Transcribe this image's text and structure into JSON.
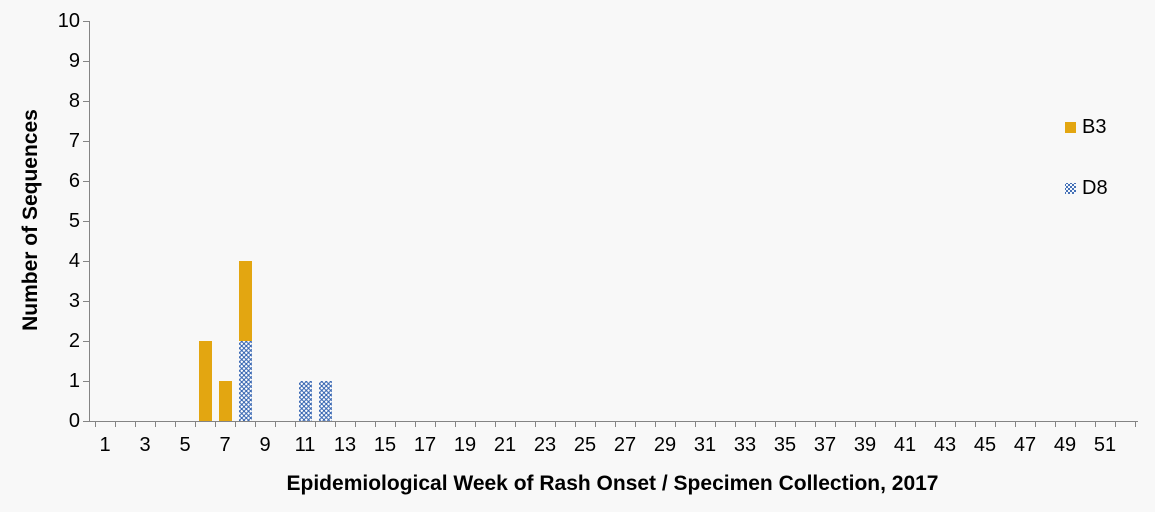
{
  "chart_data": {
    "type": "bar",
    "stacked": true,
    "title": "",
    "xlabel": "Epidemiological Week of Rash Onset / Specimen Collection, 2017",
    "ylabel": "Number of Sequences",
    "ylim": [
      0,
      10
    ],
    "y_ticks": [
      0,
      1,
      2,
      3,
      4,
      5,
      6,
      7,
      8,
      9,
      10
    ],
    "x_range": [
      1,
      52
    ],
    "x_tick_labels": [
      1,
      3,
      5,
      7,
      9,
      11,
      13,
      15,
      17,
      19,
      21,
      23,
      25,
      27,
      29,
      31,
      33,
      35,
      37,
      39,
      41,
      43,
      45,
      47,
      49,
      51
    ],
    "grid": false,
    "legend_position": "right",
    "stack_bottom_to_top": [
      "D8",
      "B3"
    ],
    "series": [
      {
        "name": "B3",
        "color": "#E3A611",
        "pattern": "solid",
        "points": [
          {
            "week": 6,
            "value": 2
          },
          {
            "week": 7,
            "value": 1
          },
          {
            "week": 8,
            "value": 2
          }
        ]
      },
      {
        "name": "D8",
        "color": "#3D6AB3",
        "pattern": "dots",
        "points": [
          {
            "week": 8,
            "value": 2
          },
          {
            "week": 11,
            "value": 1
          },
          {
            "week": 12,
            "value": 1
          }
        ]
      }
    ],
    "colors": {
      "background": "#F8F8F8",
      "axis": "#848484",
      "text": "#000000"
    }
  }
}
